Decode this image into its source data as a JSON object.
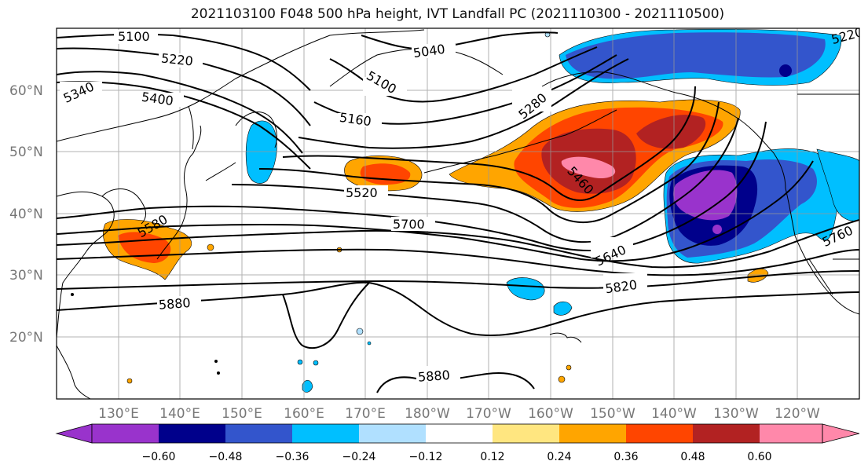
{
  "title": "2021103100 F048 500 hPa height, IVT Landfall PC (2021110300 - 2021110500)",
  "lat_labels": [
    "60°N",
    "50°N",
    "40°N",
    "30°N",
    "20°N"
  ],
  "lon_labels": [
    "130°E",
    "140°E",
    "150°E",
    "160°E",
    "170°E",
    "180°W",
    "170°W",
    "160°W",
    "150°W",
    "140°W",
    "130°W",
    "120°W"
  ],
  "contour_labels": [
    "5100",
    "5220",
    "5340",
    "5400",
    "5040",
    "5100",
    "5160",
    "5280",
    "5460",
    "5520",
    "5580",
    "5700",
    "5640",
    "5820",
    "5880",
    "5880",
    "5760",
    "5220"
  ],
  "colorbar": {
    "ticks": [
      "−0.60",
      "−0.48",
      "−0.36",
      "−0.24",
      "−0.12",
      "0.12",
      "0.24",
      "0.36",
      "0.48",
      "0.60"
    ],
    "colors": [
      "#9933cc",
      "#00008b",
      "#3355cc",
      "#00bfff",
      "#b0e0ff",
      "#ffffff",
      "#ffe680",
      "#ffa500",
      "#ff4500",
      "#b22222",
      "#ff88aa"
    ]
  },
  "colors": {
    "purple": "#9933cc",
    "navy": "#00008b",
    "royal_blue": "#3355cc",
    "sky_blue": "#00bfff",
    "pale_blue": "#b0e0ff",
    "yellow": "#ffe680",
    "orange": "#ffa500",
    "red_orange": "#ff4500",
    "dark_red": "#b22222",
    "pink": "#ff88aa"
  }
}
